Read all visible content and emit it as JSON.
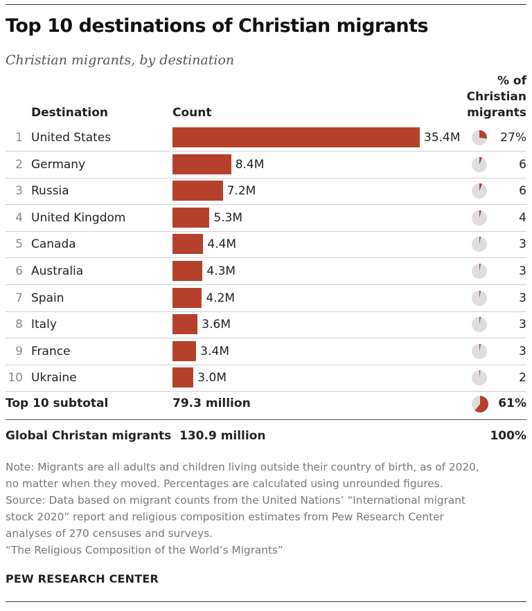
{
  "title": "Top 10 destinations of Christian migrants",
  "subtitle": "Christian migrants, by destination",
  "headers": {
    "destination": "Destination",
    "count": "Count",
    "percent": [
      "% of",
      "Christian",
      "migrants"
    ]
  },
  "colors": {
    "bar": "#b5412d",
    "pie_bg": "#dedede",
    "rule": "#333333"
  },
  "chart_data": {
    "type": "bar",
    "orientation": "horizontal",
    "title": "Top 10 destinations of Christian migrants",
    "subtitle": "Christian migrants, by destination",
    "categories": [
      "United States",
      "Germany",
      "Russia",
      "United Kingdom",
      "Canada",
      "Australia",
      "Spain",
      "Italy",
      "France",
      "Ukraine"
    ],
    "ranks": [
      "1",
      "2",
      "3",
      "4",
      "5",
      "6",
      "7",
      "8",
      "9",
      "10"
    ],
    "series": [
      {
        "name": "Count",
        "values": [
          35.4,
          8.4,
          7.2,
          5.3,
          4.4,
          4.3,
          4.2,
          3.6,
          3.4,
          3.0
        ],
        "unit": "M"
      },
      {
        "name": "% of Christian migrants",
        "values": [
          27,
          6,
          6,
          4,
          3,
          3,
          3,
          3,
          3,
          2
        ],
        "unit": "%"
      }
    ],
    "value_labels": [
      "35.4M",
      "8.4M",
      "7.2M",
      "5.3M",
      "4.4M",
      "4.3M",
      "4.2M",
      "3.6M",
      "3.4M",
      "3.0M"
    ],
    "percent_labels": [
      "27%",
      "6",
      "6",
      "4",
      "3",
      "3",
      "3",
      "3",
      "3",
      "2"
    ],
    "xlim": [
      0,
      35.4
    ],
    "grid": false,
    "legend": "none"
  },
  "subtotal": {
    "label": "Top 10 subtotal",
    "count": "79.3 million",
    "percent_label": "61%",
    "percent": 61
  },
  "global": {
    "label": "Global Christan migrants",
    "count": "130.9 million",
    "percent_label": "100%"
  },
  "notes": [
    "Note: Migrants are all adults and children living outside their country of birth, as of 2020,",
    "no matter when they moved. Percentages are calculated using unrounded figures.",
    "Source: Data based on migrant counts from the United Nations’ “International migrant",
    "stock 2020” report and religious composition estimates from Pew Research Center",
    "analyses of 270 censuses and surveys.",
    "“The Religious Composition of the World’s Migrants”"
  ],
  "brand": "PEW RESEARCH CENTER"
}
